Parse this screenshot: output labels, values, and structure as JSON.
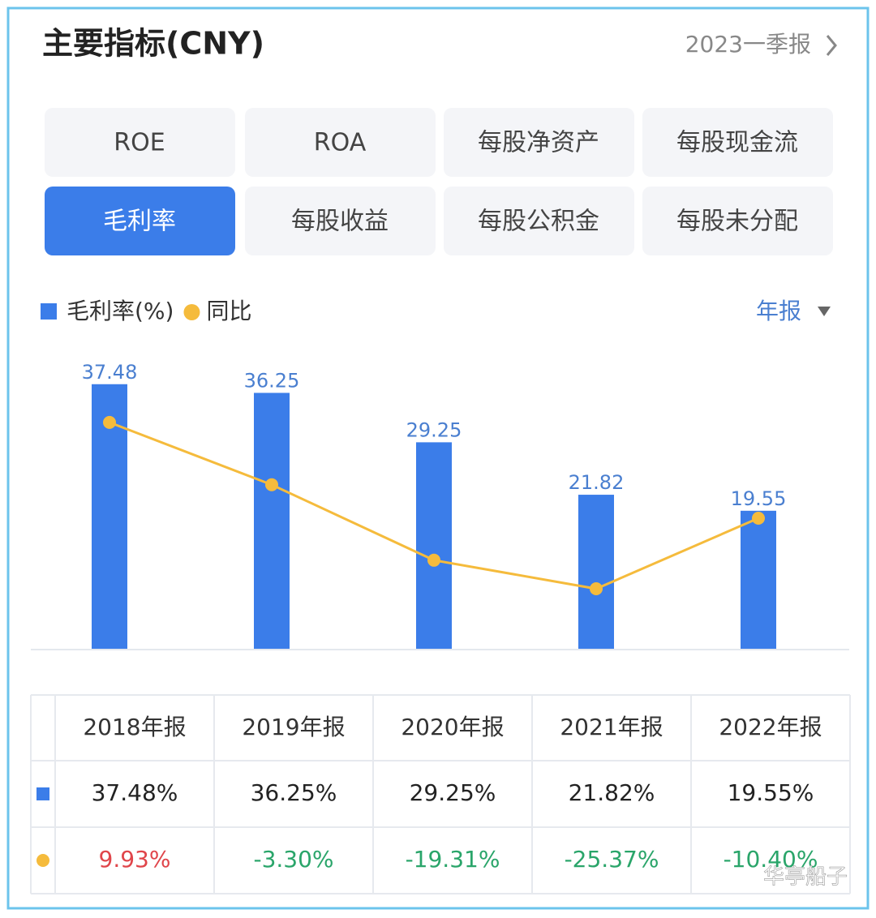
{
  "header": {
    "title": "主要指标(CNY)",
    "period": "2023一季报"
  },
  "tabs": [
    "ROE",
    "ROA",
    "每股净资产",
    "每股现金流",
    "毛利率",
    "每股收益",
    "每股公积金",
    "每股未分配"
  ],
  "active_tab": 4,
  "dropdown": "年报",
  "chart_data": {
    "type": "bar",
    "categories": [
      "2018年报",
      "2019年报",
      "2020年报",
      "2021年报",
      "2022年报"
    ],
    "series": [
      {
        "name": "毛利率(%)",
        "color": "#3b7de9",
        "values": [
          37.48,
          36.25,
          29.25,
          21.82,
          19.55
        ]
      },
      {
        "name": "同比",
        "type": "line",
        "axis": "y2",
        "color": "#f5bb3c",
        "values": [
          9.93,
          -3.3,
          -19.31,
          -25.37,
          -10.4
        ]
      }
    ],
    "ylim": [
      0,
      44
    ],
    "y2lim": [
      -38.1,
      27.8
    ],
    "legend": "top-left"
  },
  "table": {
    "rows": [
      [
        "37.48%",
        "36.25%",
        "29.25%",
        "21.82%",
        "19.55%"
      ],
      [
        "9.93%",
        "-3.30%",
        "-19.31%",
        "-25.37%",
        "-10.40%"
      ]
    ]
  },
  "watermark": "华亭船子"
}
